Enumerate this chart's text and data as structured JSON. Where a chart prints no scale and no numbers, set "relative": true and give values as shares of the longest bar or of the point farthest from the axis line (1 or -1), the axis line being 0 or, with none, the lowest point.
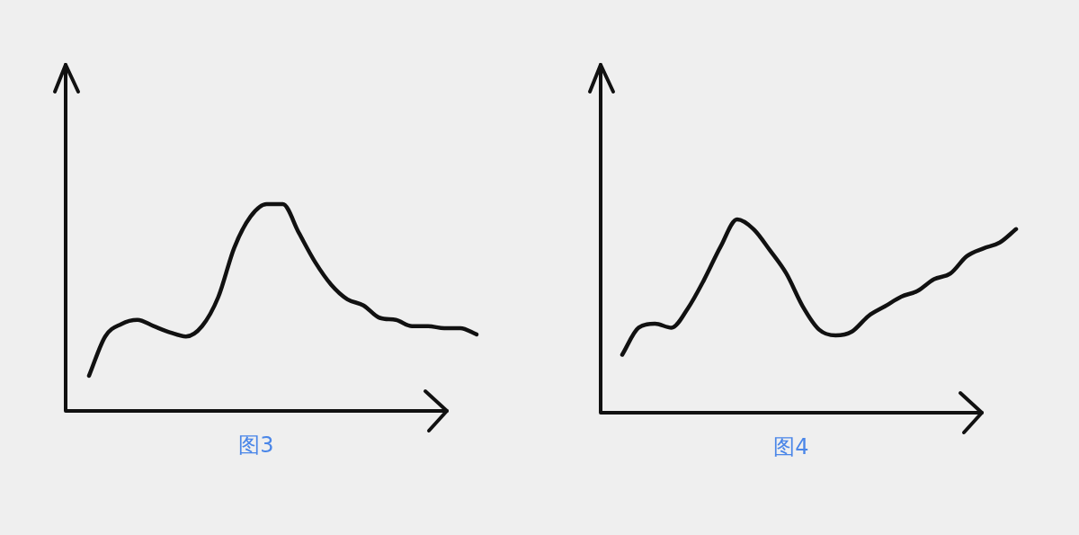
{
  "chart_data": [
    {
      "type": "line",
      "relative": true,
      "xlabel": "图3",
      "categories": [
        null,
        null,
        null,
        null,
        null,
        null,
        null,
        null,
        null,
        null,
        null,
        null,
        null,
        null,
        null,
        null,
        null,
        null,
        null,
        null,
        null,
        null,
        null,
        null,
        null
      ],
      "series": [
        {
          "color": "#111111",
          "values": [
            0.17,
            0.36,
            0.42,
            0.44,
            0.41,
            0.38,
            0.36,
            0.41,
            0.55,
            0.79,
            0.94,
            1.0,
            1.0,
            0.86,
            0.72,
            0.61,
            0.54,
            0.51,
            0.45,
            0.44,
            0.41,
            0.41,
            0.4,
            0.4,
            0.37
          ]
        }
      ]
    },
    {
      "type": "line",
      "relative": true,
      "xlabel": "图4",
      "categories": [
        null,
        null,
        null,
        null,
        null,
        null,
        null,
        null,
        null,
        null,
        null,
        null,
        null,
        null,
        null,
        null,
        null,
        null,
        null,
        null,
        null,
        null,
        null,
        null,
        null
      ],
      "series": [
        {
          "color": "#111111",
          "values": [
            0.3,
            0.44,
            0.46,
            0.44,
            0.54,
            0.69,
            0.86,
            1.0,
            0.95,
            0.84,
            0.72,
            0.55,
            0.43,
            0.4,
            0.42,
            0.5,
            0.55,
            0.6,
            0.63,
            0.69,
            0.72,
            0.81,
            0.85,
            0.88,
            0.95
          ]
        }
      ]
    }
  ]
}
